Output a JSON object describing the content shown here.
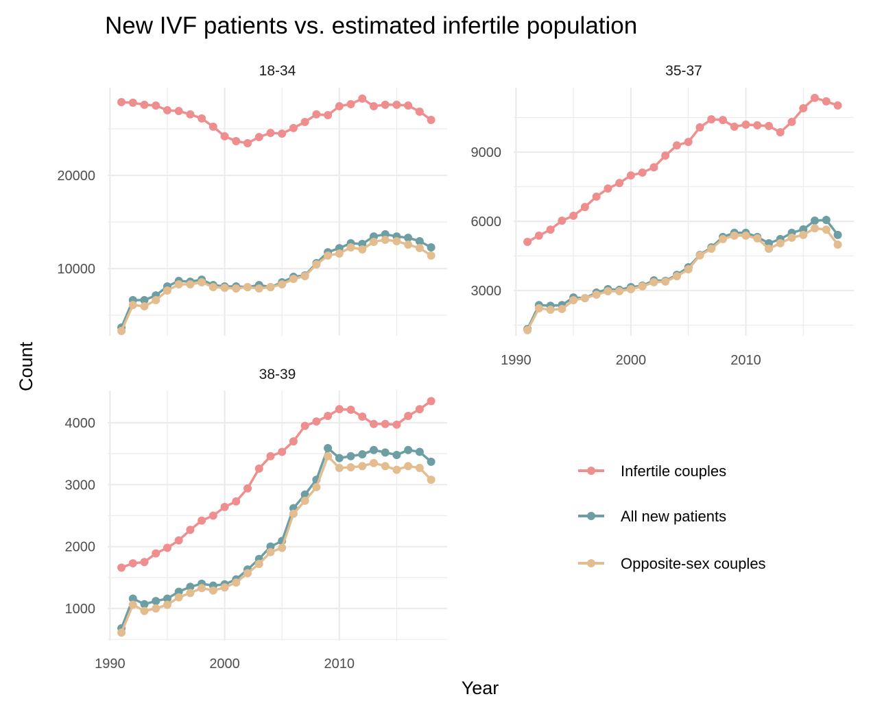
{
  "chart_data": {
    "type": "line",
    "title": "New IVF patients vs. estimated infertile population",
    "xlabel": "Year",
    "ylabel": "Count",
    "grid": true,
    "legend_position": "right",
    "x": [
      1991,
      1992,
      1993,
      1994,
      1995,
      1996,
      1997,
      1998,
      1999,
      2000,
      2001,
      2002,
      2003,
      2004,
      2005,
      2006,
      2007,
      2008,
      2009,
      2010,
      2011,
      2012,
      2013,
      2014,
      2015,
      2016,
      2017,
      2018
    ],
    "series_meta": [
      {
        "key": "infertile",
        "name": "Infertile couples",
        "color": "#ee8e8f"
      },
      {
        "key": "all",
        "name": "All new patients",
        "color": "#6c9ea3"
      },
      {
        "key": "opposite",
        "name": "Opposite-sex couples",
        "color": "#e3bd8f"
      }
    ],
    "panels": [
      {
        "title": "18-34",
        "xlim": [
          1989.8,
          2019.4
        ],
        "ylim": [
          2800,
          29400
        ],
        "yticks": [
          10000,
          20000
        ],
        "ytick_labels": [
          "10000",
          "20000"
        ],
        "yminor": [
          5000,
          15000,
          25000
        ],
        "xticks": [],
        "xtick_labels": [],
        "series": {
          "infertile": [
            27860,
            27790,
            27570,
            27490,
            26980,
            26900,
            26540,
            26100,
            25220,
            24190,
            23670,
            23450,
            24110,
            24550,
            24480,
            25070,
            25730,
            26540,
            26460,
            27420,
            27640,
            28230,
            27420,
            27570,
            27570,
            27490,
            26830,
            25950
          ],
          "all": [
            3680,
            6620,
            6620,
            7130,
            8090,
            8680,
            8600,
            8820,
            8240,
            8090,
            8090,
            8020,
            8240,
            8020,
            8530,
            9120,
            9270,
            10590,
            11760,
            12200,
            12720,
            12650,
            13450,
            13680,
            13450,
            13310,
            12940,
            12280
          ],
          "opposite": [
            3310,
            6100,
            5960,
            6620,
            7650,
            8310,
            8310,
            8530,
            8020,
            7940,
            7870,
            8020,
            7870,
            8020,
            8310,
            8900,
            9190,
            10440,
            11400,
            11620,
            12280,
            12060,
            12870,
            13090,
            12940,
            12570,
            12210,
            11400
          ]
        }
      },
      {
        "title": "35-37",
        "xlim": [
          1989.8,
          2019.4
        ],
        "ylim": [
          1040,
          11790
        ],
        "yticks": [
          3000,
          6000,
          9000
        ],
        "ytick_labels": [
          "3000",
          "6000",
          "9000"
        ],
        "yminor": [
          1500,
          4500,
          7500,
          10500
        ],
        "xticks": [
          1990,
          2000,
          2010
        ],
        "xtick_labels": [
          "1990",
          "2000",
          "2010"
        ],
        "series": {
          "infertile": [
            5110,
            5380,
            5640,
            6030,
            6240,
            6620,
            7070,
            7420,
            7660,
            7990,
            8110,
            8340,
            8850,
            9290,
            9440,
            10070,
            10420,
            10390,
            10100,
            10190,
            10160,
            10130,
            9860,
            10310,
            10900,
            11350,
            11200,
            11020
          ],
          "all": [
            1330,
            2370,
            2340,
            2370,
            2700,
            2670,
            2910,
            3060,
            3030,
            3150,
            3210,
            3440,
            3420,
            3680,
            4010,
            4540,
            4870,
            5320,
            5500,
            5500,
            5320,
            5050,
            5230,
            5500,
            5650,
            6030,
            6060,
            5410
          ],
          "opposite": [
            1280,
            2230,
            2170,
            2200,
            2580,
            2670,
            2820,
            2970,
            2970,
            3060,
            3180,
            3360,
            3390,
            3620,
            3920,
            4520,
            4810,
            5230,
            5380,
            5380,
            5260,
            4810,
            5050,
            5290,
            5410,
            5700,
            5640,
            4990
          ]
        }
      },
      {
        "title": "38-39",
        "xlim": [
          1989.8,
          2019.4
        ],
        "ylim": [
          480,
          4520
        ],
        "yticks": [
          1000,
          2000,
          3000,
          4000
        ],
        "ytick_labels": [
          "1000",
          "2000",
          "3000",
          "4000"
        ],
        "yminor": [
          500,
          1500,
          2500,
          3500
        ],
        "xticks": [
          1990,
          2000,
          2010
        ],
        "xtick_labels": [
          "1990",
          "2000",
          "2010"
        ],
        "series": {
          "infertile": [
            1660,
            1730,
            1750,
            1890,
            1980,
            2100,
            2270,
            2420,
            2500,
            2640,
            2730,
            2940,
            3260,
            3460,
            3530,
            3700,
            3950,
            4020,
            4110,
            4220,
            4210,
            4100,
            3980,
            3980,
            3970,
            4110,
            4220,
            4350
          ],
          "all": [
            680,
            1160,
            1070,
            1120,
            1160,
            1270,
            1350,
            1400,
            1370,
            1390,
            1470,
            1630,
            1800,
            2000,
            2090,
            2620,
            2840,
            3080,
            3590,
            3430,
            3460,
            3490,
            3560,
            3520,
            3480,
            3560,
            3530,
            3370
          ],
          "opposite": [
            610,
            1060,
            960,
            1000,
            1060,
            1180,
            1250,
            1330,
            1290,
            1340,
            1420,
            1570,
            1720,
            1910,
            1980,
            2530,
            2740,
            2960,
            3460,
            3270,
            3280,
            3300,
            3350,
            3300,
            3240,
            3300,
            3270,
            3080
          ]
        }
      }
    ]
  }
}
